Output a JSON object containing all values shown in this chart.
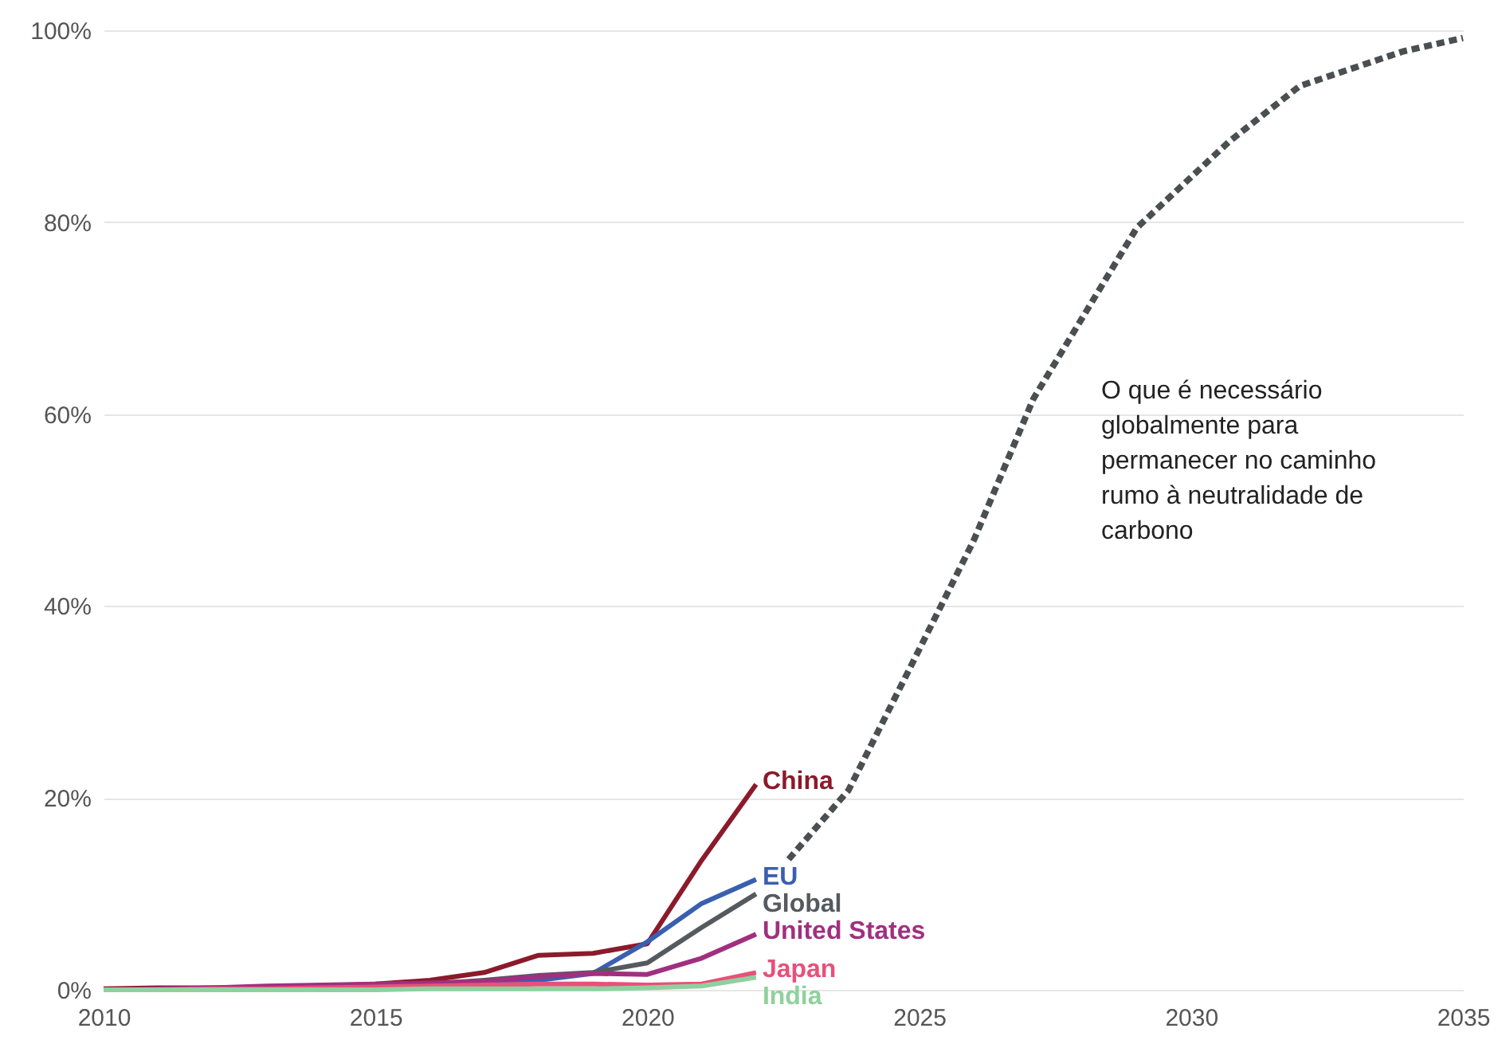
{
  "chart_data": {
    "type": "line",
    "annotations": [
      "O que é necessário globalmente para permanecer no caminho rumo à neutralidade de carbono"
    ],
    "xlim": [
      2010,
      2035
    ],
    "xticks": [
      2010,
      2015,
      2020,
      2025,
      2030,
      2035
    ],
    "ylim": [
      0,
      100
    ],
    "yticks": [
      {
        "value": 0,
        "label": "0%"
      },
      {
        "value": 20,
        "label": "20%"
      },
      {
        "value": 40,
        "label": "40%"
      },
      {
        "value": 60,
        "label": "60%"
      },
      {
        "value": 80,
        "label": "80%"
      },
      {
        "value": 100,
        "label": "100%"
      }
    ],
    "grid": "y",
    "marker": "none",
    "series": [
      {
        "name": "China",
        "color": "#8b1a2b",
        "x": [
          2010,
          2011,
          2012,
          2013,
          2014,
          2015,
          2016,
          2017,
          2018,
          2019,
          2020,
          2021,
          2022
        ],
        "values": [
          0.1,
          0.2,
          0.2,
          0.3,
          0.4,
          0.6,
          1,
          1.8,
          3.6,
          3.8,
          4.8,
          13.5,
          21.4
        ]
      },
      {
        "name": "EU",
        "color": "#3a5fb0",
        "x": [
          2017,
          2018,
          2019,
          2020,
          2021,
          2022
        ],
        "values": [
          0.6,
          1,
          1.7,
          5,
          9,
          11.5
        ]
      },
      {
        "name": "Global",
        "color": "#555a5e",
        "x": [
          2014,
          2015,
          2016,
          2017,
          2018,
          2019,
          2020,
          2021,
          2022
        ],
        "values": [
          0.3,
          0.4,
          0.6,
          1,
          1.5,
          1.8,
          2.8,
          6.5,
          10
        ]
      },
      {
        "name": "United States",
        "color": "#a0307f",
        "x": [
          2010,
          2011,
          2012,
          2013,
          2014,
          2015,
          2016,
          2017,
          2018,
          2019,
          2020,
          2021,
          2022
        ],
        "values": [
          0,
          0.1,
          0.2,
          0.4,
          0.5,
          0.6,
          0.7,
          0.9,
          1.4,
          1.7,
          1.6,
          3.3,
          5.8
        ]
      },
      {
        "name": "Japan",
        "color": "#e8507a",
        "x": [
          2010,
          2011,
          2012,
          2013,
          2014,
          2015,
          2016,
          2017,
          2018,
          2019,
          2020,
          2021,
          2022
        ],
        "values": [
          0,
          0,
          0.1,
          0.1,
          0.2,
          0.3,
          0.4,
          0.5,
          0.6,
          0.6,
          0.5,
          0.6,
          1.8
        ]
      },
      {
        "name": "India",
        "color": "#8fd19e",
        "x": [
          2010,
          2011,
          2012,
          2013,
          2014,
          2015,
          2016,
          2017,
          2018,
          2019,
          2020,
          2021,
          2022
        ],
        "values": [
          0,
          0,
          0,
          0,
          0,
          0,
          0.1,
          0.1,
          0.1,
          0.1,
          0.2,
          0.4,
          1.3
        ]
      },
      {
        "color": "#4a4f52",
        "line_style": "dashed",
        "x": [
          2022.6,
          2023.7,
          2024.8,
          2026,
          2027.1,
          2029,
          2030.7,
          2032,
          2033.9,
          2035
        ],
        "values": [
          13.6,
          20.8,
          33.2,
          46.8,
          61.6,
          79.4,
          88.4,
          94.2,
          97.8,
          99.2
        ]
      }
    ]
  }
}
